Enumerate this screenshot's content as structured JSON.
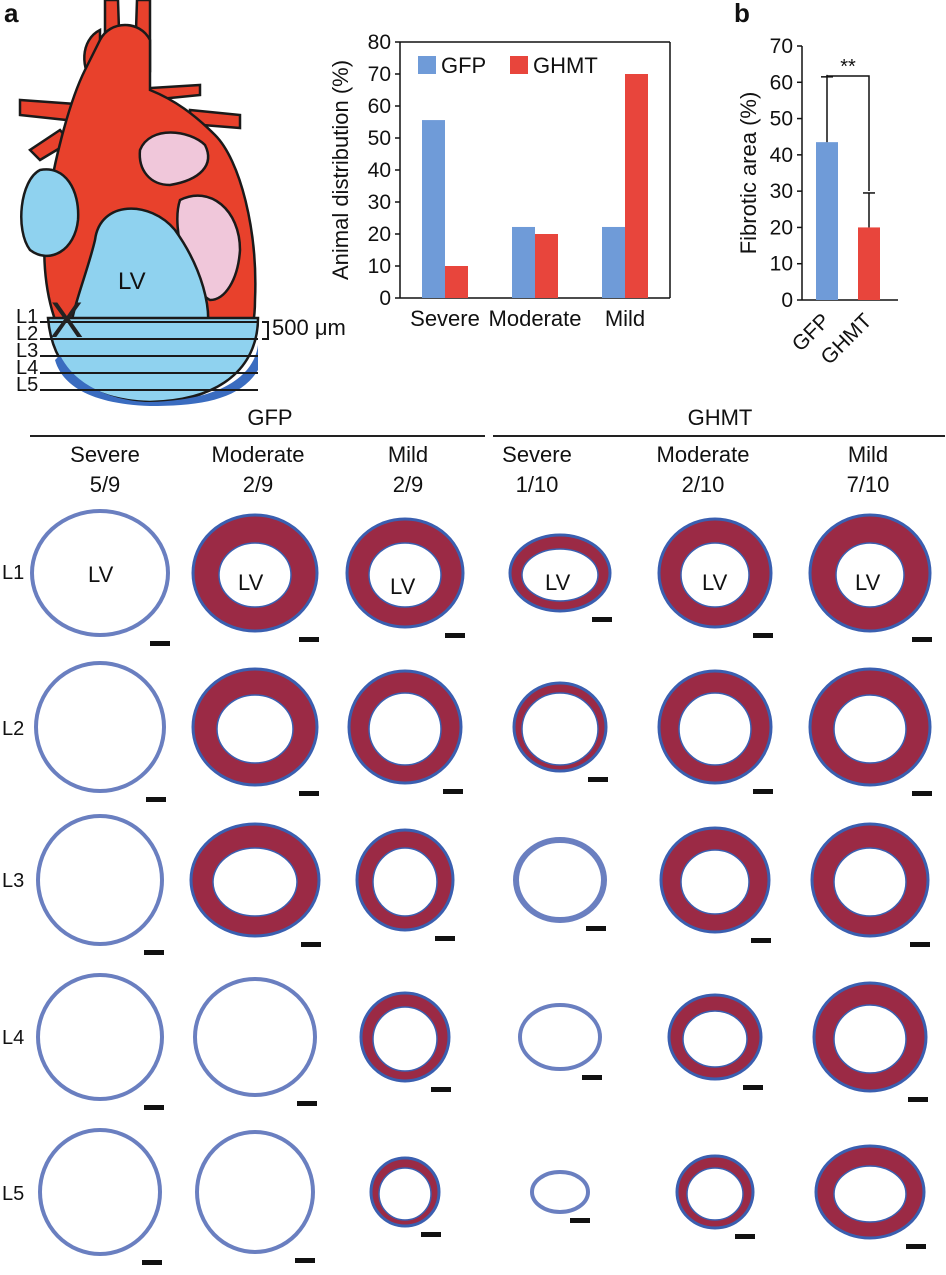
{
  "panels": {
    "a": "a",
    "b": "b"
  },
  "heart": {
    "lv_label": "LV",
    "levels": [
      "L1",
      "L2",
      "L3",
      "L4",
      "L5"
    ],
    "spacing_label": "500 μm",
    "ligation_mark": "X"
  },
  "chart_data": [
    {
      "type": "bar",
      "title": "",
      "xlabel": "",
      "ylabel": "Animal distribution (%)",
      "ylim": [
        0,
        80
      ],
      "yticks": [
        0,
        10,
        20,
        30,
        40,
        50,
        60,
        70,
        80
      ],
      "categories": [
        "Severe",
        "Moderate",
        "Mild"
      ],
      "series": [
        {
          "name": "GFP",
          "color": "#6f9bd8",
          "values": [
            55.6,
            22.2,
            22.2
          ]
        },
        {
          "name": "GHMT",
          "color": "#e8453c",
          "values": [
            10,
            20,
            70
          ]
        }
      ],
      "legend": "top-left"
    },
    {
      "type": "bar",
      "title": "",
      "xlabel": "",
      "ylabel": "Fibrotic area (%)",
      "ylim": [
        0,
        70
      ],
      "yticks": [
        0,
        10,
        20,
        30,
        40,
        50,
        60,
        70
      ],
      "categories": [
        "GFP",
        "GHMT"
      ],
      "values": [
        43.5,
        20
      ],
      "errors": [
        18,
        9.5
      ],
      "colors": [
        "#6f9bd8",
        "#e8453c"
      ],
      "significance": "**"
    }
  ],
  "sections": {
    "groups": [
      {
        "label": "GFP",
        "columns": [
          {
            "severity": "Severe",
            "fraction": "5/9"
          },
          {
            "severity": "Moderate",
            "fraction": "2/9"
          },
          {
            "severity": "Mild",
            "fraction": "2/9"
          }
        ]
      },
      {
        "label": "GHMT",
        "columns": [
          {
            "severity": "Severe",
            "fraction": "1/10"
          },
          {
            "severity": "Moderate",
            "fraction": "2/10"
          },
          {
            "severity": "Mild",
            "fraction": "7/10"
          }
        ]
      }
    ],
    "rows": [
      "L1",
      "L2",
      "L3",
      "L4",
      "L5"
    ],
    "lv_label": "LV",
    "colors": {
      "muscle": "#9b2a45",
      "fibrosis": "#3a5fb0",
      "outline": "#6a7fc0"
    }
  }
}
